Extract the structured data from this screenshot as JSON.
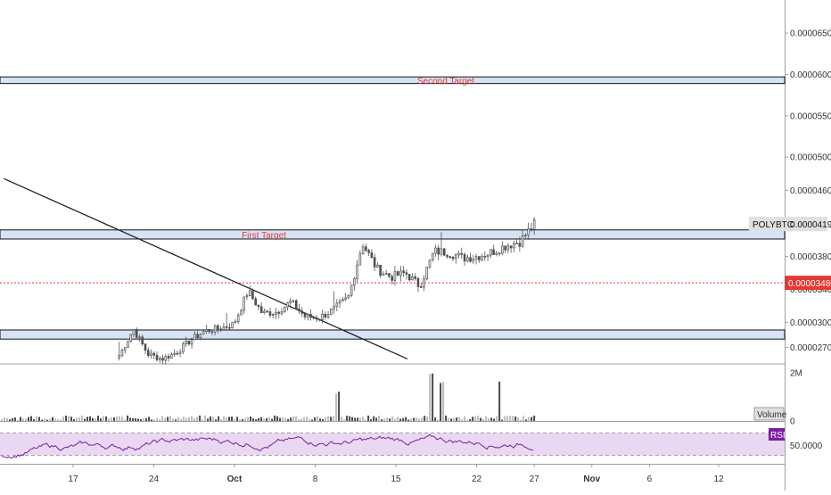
{
  "chart_data": {
    "type": "candlestick",
    "symbol_label": "POLYBTC",
    "last_price_label": "0.00004191",
    "marked_price_label": "0.00003480",
    "price_axis": {
      "ylim": [
        2.5e-05,
        6.9e-05
      ],
      "ticks": [
        "0.00006500",
        "0.00006000",
        "0.00005500",
        "0.00005000",
        "0.00004600",
        "0.00003800",
        "0.00003400",
        "0.00003000",
        "0.00002700"
      ]
    },
    "x_axis": {
      "ticks": [
        "17",
        "24",
        "Oct",
        "8",
        "15",
        "22",
        "27",
        "Nov",
        "6",
        "12"
      ]
    },
    "zones": [
      {
        "label": "Second Target",
        "low": 5.89e-05,
        "high": 5.97e-05
      },
      {
        "label": "First Target",
        "low": 4.01e-05,
        "high": 4.12e-05
      },
      {
        "label": "",
        "low": 2.8e-05,
        "high": 2.91e-05
      }
    ],
    "horizontal_lines": [
      {
        "value": 3.48e-05,
        "style": "dotted",
        "color": "#e53935"
      }
    ],
    "trendline": {
      "from": {
        "date": "Sep 11",
        "price": 4.74e-05
      },
      "to": {
        "date": "Oct 16",
        "price": 2.56e-05
      }
    },
    "candles_summary": {
      "start": "Sep 21",
      "end": "Oct 27",
      "count": 144,
      "interval": "6h",
      "closes": [
        2.6e-05,
        2.92e-05,
        2.62e-05,
        2.56e-05,
        2.64e-05,
        2.79e-05,
        2.9e-05,
        2.93e-05,
        2.98e-05,
        3.38e-05,
        3.11e-05,
        3.13e-05,
        3.25e-05,
        3.07e-05,
        3.06e-05,
        3.16e-05,
        3.3e-05,
        3.96e-05,
        3.65e-05,
        3.55e-05,
        3.6e-05,
        3.44e-05,
        3.86e-05,
        3.85e-05,
        3.78e-05,
        3.8e-05,
        3.85e-05,
        3.93e-05,
        3.98e-05,
        4.19e-05
      ]
    },
    "volume_panel": {
      "label": "Volume",
      "ticks": [
        "2M",
        "0"
      ],
      "spikes": [
        {
          "date": "Oct 10",
          "value": 1250000
        },
        {
          "date": "Oct 18",
          "value": 2000000
        },
        {
          "date": "Oct 19",
          "value": 1750000
        },
        {
          "date": "Oct 24",
          "value": 1700000
        }
      ]
    },
    "rsi_panel": {
      "label": "RSI",
      "value_label": "50.0000",
      "band": [
        30,
        70
      ],
      "ylim": [
        15,
        85
      ]
    }
  }
}
